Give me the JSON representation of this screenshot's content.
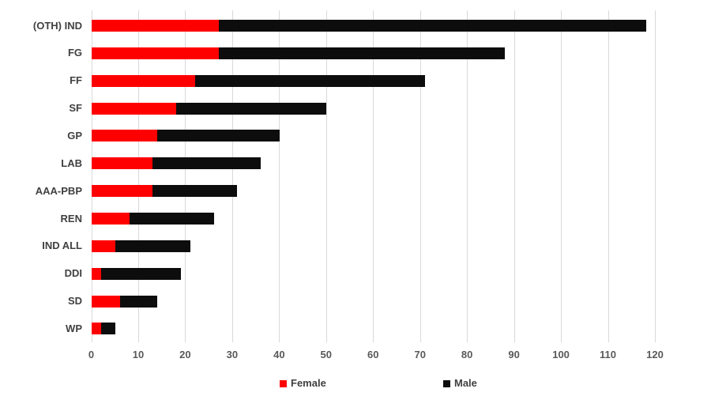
{
  "chart_data": {
    "type": "bar",
    "orientation": "horizontal",
    "stacked": true,
    "title": "",
    "xlabel": "",
    "ylabel": "",
    "categories": [
      "(OTH) IND",
      "FG",
      "FF",
      "SF",
      "GP",
      "LAB",
      "AAA-PBP",
      "REN",
      "IND ALL",
      "DDI",
      "SD",
      "WP"
    ],
    "series": [
      {
        "name": "Female",
        "color": "#ff0000",
        "values": [
          27,
          27,
          22,
          18,
          14,
          13,
          13,
          8,
          5,
          2,
          6,
          2
        ]
      },
      {
        "name": "Male",
        "color": "#0d0d0d",
        "values": [
          91,
          61,
          49,
          32,
          26,
          23,
          18,
          18,
          16,
          17,
          8,
          3
        ]
      }
    ],
    "totals": [
      118,
      88,
      71,
      50,
      40,
      36,
      31,
      26,
      21,
      19,
      14,
      5
    ],
    "x_axis": {
      "min": 0,
      "max": 120,
      "tick_interval": 10,
      "tick_labels": [
        "0",
        "10",
        "20",
        "30",
        "40",
        "50",
        "60",
        "70",
        "80",
        "90",
        "100",
        "110",
        "120"
      ]
    },
    "grid": "vertical-only",
    "gridline_color": "#d9d9d9",
    "axis_text_color": "#595959",
    "category_text_color": "#404040",
    "legend": {
      "position": "bottom",
      "entries": [
        {
          "label": "Female",
          "color": "#ff0000"
        },
        {
          "label": "Male",
          "color": "#0d0d0d"
        }
      ]
    },
    "background": "#ffffff"
  }
}
